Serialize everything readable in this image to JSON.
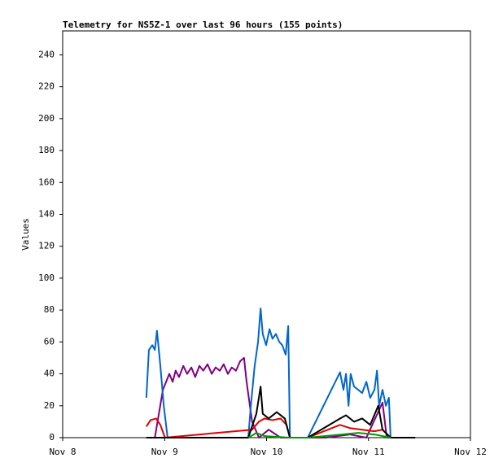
{
  "chart_data": {
    "type": "line",
    "title": "Telemetry for NS5Z-1 over last 96 hours (155 points)",
    "y_label": "Values",
    "xlim": [
      0,
      96
    ],
    "xticks": [
      {
        "value": 0,
        "label": "Nov 8"
      },
      {
        "value": 24,
        "label": "Nov 9"
      },
      {
        "value": 48,
        "label": "Nov 10"
      },
      {
        "value": 72,
        "label": "Nov 11"
      },
      {
        "value": 96,
        "label": "Nov 12"
      }
    ],
    "ylim": [
      0,
      255
    ],
    "yticks": [
      0,
      20,
      40,
      60,
      80,
      100,
      120,
      140,
      160,
      180,
      200,
      220,
      240
    ],
    "series": [
      {
        "color": "#800080",
        "x": [
          19.7,
          21.7,
          23.6,
          25.1,
          25.9,
          26.6,
          27.4,
          28.4,
          29.3,
          30.3,
          31.2,
          32.2,
          33.1,
          34.1,
          35.1,
          36.0,
          37.0,
          37.9,
          38.9,
          39.8,
          40.8,
          41.8,
          42.7,
          43.3,
          44.6,
          46.2,
          48.5,
          51.3,
          53.3,
          61.9,
          67.6,
          71.5,
          75.3,
          76.3,
          83.0
        ],
        "values": [
          0,
          0,
          30,
          40,
          35,
          42,
          38,
          45,
          40,
          44,
          38,
          45,
          42,
          46,
          40,
          44,
          42,
          46,
          40,
          44,
          42,
          48,
          50,
          35,
          10,
          0,
          5,
          0,
          0,
          0,
          2,
          0,
          22,
          0,
          0
        ]
      },
      {
        "color": "#0066cc",
        "x": [
          19.7,
          20.3,
          21.1,
          21.7,
          22.2,
          23.0,
          23.8,
          24.7,
          43.7,
          44.3,
          45.2,
          46.0,
          46.6,
          47.1,
          47.9,
          48.7,
          49.4,
          50.2,
          51.0,
          51.7,
          52.5,
          53.1,
          53.5,
          57.7,
          65.3,
          66.1,
          66.7,
          67.3,
          67.8,
          68.6,
          69.6,
          70.5,
          71.5,
          72.4,
          73.4,
          74.0,
          74.5,
          75.3,
          76.1,
          76.8,
          77.2
        ],
        "values": [
          25,
          55,
          58,
          55,
          67,
          45,
          20,
          0,
          0,
          20,
          45,
          60,
          81,
          65,
          58,
          68,
          62,
          65,
          60,
          58,
          52,
          70,
          0,
          0,
          41,
          30,
          40,
          20,
          40,
          32,
          30,
          28,
          35,
          25,
          30,
          42,
          20,
          30,
          20,
          25,
          0
        ]
      },
      {
        "color": "#e00000",
        "x": [
          19.7,
          20.7,
          22.0,
          23.0,
          24.1,
          44.6,
          46.2,
          47.5,
          49.4,
          51.3,
          52.7,
          53.5,
          57.7,
          65.3,
          67.6,
          70.5,
          73.4,
          75.3,
          77.2
        ],
        "values": [
          7,
          11,
          12,
          8,
          0,
          5,
          10,
          12,
          11,
          12,
          8,
          0,
          0,
          8,
          6,
          5,
          4,
          5,
          0
        ]
      },
      {
        "color": "#000000",
        "x": [
          19.7,
          43.7,
          45.6,
          46.6,
          47.1,
          48.5,
          50.4,
          52.3,
          53.5,
          57.7,
          65.3,
          66.7,
          68.6,
          70.5,
          72.4,
          74.3,
          75.3,
          77.2,
          83.0
        ],
        "values": [
          0,
          0,
          15,
          32,
          15,
          12,
          16,
          12,
          0,
          0,
          12,
          14,
          10,
          12,
          8,
          20,
          5,
          0,
          0
        ]
      },
      {
        "color": "#009900",
        "x": [
          43.7,
          45.6,
          47.5,
          53.3,
          57.7,
          65.7,
          69.6,
          73.4,
          77.2
        ],
        "values": [
          0,
          3,
          1,
          0,
          0,
          2,
          3,
          2,
          0
        ]
      }
    ]
  }
}
